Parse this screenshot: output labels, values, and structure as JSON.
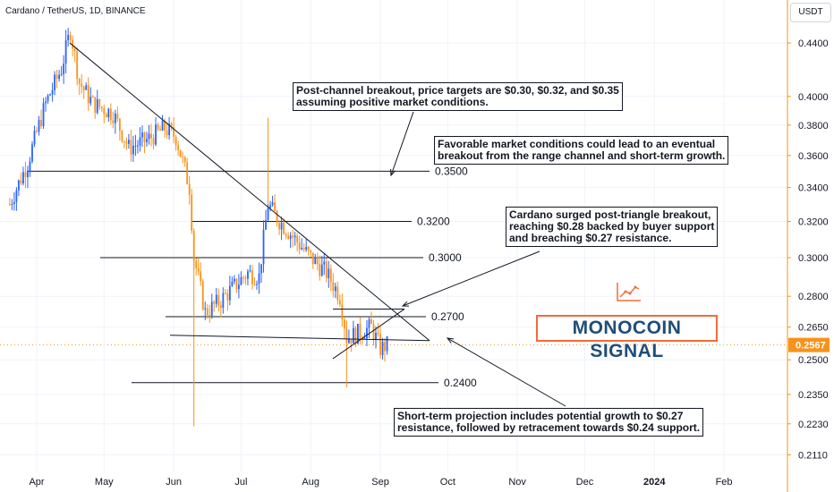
{
  "header": {
    "title": "Cardano / TetherUS, 1D, BINANCE",
    "currency_button": "USDT"
  },
  "chart_data": {
    "type": "candlestick",
    "title": "Cardano / TetherUS, 1D, BINANCE",
    "y_scale": "log",
    "ylim": [
      0.2055,
      0.4565
    ],
    "y_ticks": [
      "0.4400",
      "0.4000",
      "0.3800",
      "0.3600",
      "0.3400",
      "0.3200",
      "0.3000",
      "0.2800",
      "0.2650",
      "0.2500",
      "0.2350",
      "0.2230",
      "0.2110"
    ],
    "x_ticks": [
      "Apr",
      "May",
      "Jun",
      "Jul",
      "Aug",
      "Sep",
      "Oct",
      "Nov",
      "Dec",
      "2024",
      "Feb"
    ],
    "last_price": "0.2567",
    "up_color": "#2962ff",
    "down_color": "#f7931a",
    "grid": true,
    "levels": [
      {
        "label": "0.3500",
        "value": 0.35
      },
      {
        "label": "0.3200",
        "value": 0.32
      },
      {
        "label": "0.3000",
        "value": 0.3
      },
      {
        "label": "0.2700",
        "value": 0.27
      },
      {
        "label": "0.2400",
        "value": 0.24
      }
    ],
    "price_path": [
      [
        "2023-03-20",
        0.33
      ],
      [
        "2023-03-28",
        0.355
      ],
      [
        "2023-04-05",
        0.395
      ],
      [
        "2023-04-12",
        0.42
      ],
      [
        "2023-04-16",
        0.45
      ],
      [
        "2023-04-20",
        0.41
      ],
      [
        "2023-04-26",
        0.395
      ],
      [
        "2023-05-05",
        0.388
      ],
      [
        "2023-05-12",
        0.365
      ],
      [
        "2023-05-20",
        0.37
      ],
      [
        "2023-05-28",
        0.378
      ],
      [
        "2023-06-02",
        0.372
      ],
      [
        "2023-06-08",
        0.34
      ],
      [
        "2023-06-10",
        0.3
      ],
      [
        "2023-06-15",
        0.272
      ],
      [
        "2023-06-22",
        0.278
      ],
      [
        "2023-06-28",
        0.285
      ],
      [
        "2023-07-04",
        0.292
      ],
      [
        "2023-07-09",
        0.29
      ],
      [
        "2023-07-13",
        0.33
      ],
      [
        "2023-07-17",
        0.322
      ],
      [
        "2023-07-25",
        0.31
      ],
      [
        "2023-08-01",
        0.3
      ],
      [
        "2023-08-08",
        0.292
      ],
      [
        "2023-08-14",
        0.28
      ],
      [
        "2023-08-17",
        0.26
      ],
      [
        "2023-08-22",
        0.262
      ],
      [
        "2023-08-28",
        0.265
      ],
      [
        "2023-09-01",
        0.255
      ],
      [
        "2023-09-04",
        0.2567
      ]
    ]
  },
  "annotations": {
    "note1": "Post-channel breakout, price targets are $0.30, $0.32, and $0.35\nassuming positive market conditions.",
    "note2": "Favorable market conditions could lead to an eventual\nbreakout from the range channel and short-term growth.",
    "note3": "Cardano surged post-triangle breakout,\nreaching $0.28 backed by buyer support\nand breaching $0.27 resistance.",
    "note4": "Short-term projection includes potential growth to $0.27\nresistance, followed by retracement towards $0.24 support."
  },
  "logo": {
    "text": "MONOCOIN SIGNAL"
  }
}
